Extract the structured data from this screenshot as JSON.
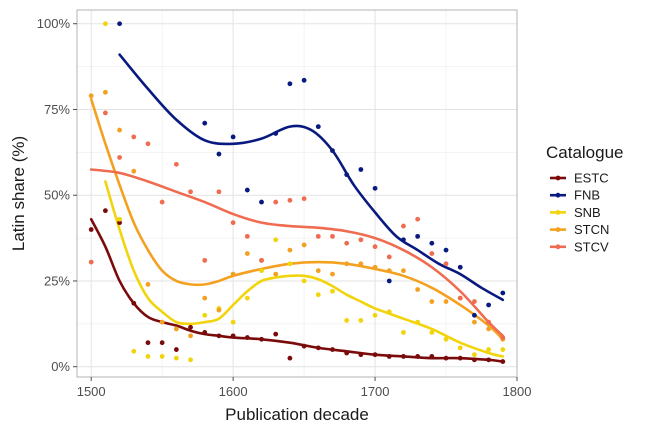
{
  "chart_data": {
    "type": "scatter",
    "xlabel": "Publication decade",
    "ylabel": "Latin share (%)",
    "xlim": [
      1490,
      1800
    ],
    "ylim": [
      -3,
      104
    ],
    "xticks": [
      1500,
      1600,
      1700,
      1800
    ],
    "xtick_labels": [
      "1500",
      "1600",
      "1700",
      "1800"
    ],
    "yticks": [
      0,
      25,
      50,
      75,
      100
    ],
    "ytick_labels": [
      "0%",
      "25%",
      "50%",
      "75%",
      "100%"
    ],
    "grid": true,
    "legend": {
      "title": "Catalogue",
      "position": "right"
    },
    "series": [
      {
        "name": "ESTC",
        "color": "#7b0a0a",
        "points": [
          [
            1500,
            40
          ],
          [
            1510,
            45.5
          ],
          [
            1520,
            42
          ],
          [
            1530,
            18.5
          ],
          [
            1540,
            7
          ],
          [
            1550,
            7
          ],
          [
            1560,
            5
          ],
          [
            1570,
            11.5
          ],
          [
            1580,
            10
          ],
          [
            1590,
            9
          ],
          [
            1600,
            9
          ],
          [
            1610,
            8.5
          ],
          [
            1620,
            8
          ],
          [
            1630,
            9.5
          ],
          [
            1640,
            2.5
          ],
          [
            1650,
            6
          ],
          [
            1660,
            5.5
          ],
          [
            1670,
            5
          ],
          [
            1680,
            4
          ],
          [
            1690,
            3.5
          ],
          [
            1700,
            3.5
          ],
          [
            1710,
            3
          ],
          [
            1720,
            3
          ],
          [
            1730,
            3
          ],
          [
            1740,
            3
          ],
          [
            1750,
            2.5
          ],
          [
            1760,
            2.5
          ],
          [
            1770,
            2
          ],
          [
            1780,
            2
          ],
          [
            1790,
            1.5
          ]
        ],
        "trend": [
          [
            1500,
            43
          ],
          [
            1510,
            35
          ],
          [
            1520,
            25
          ],
          [
            1530,
            18.5
          ],
          [
            1540,
            14.5
          ],
          [
            1550,
            13
          ],
          [
            1560,
            12
          ],
          [
            1570,
            10.5
          ],
          [
            1580,
            9.5
          ],
          [
            1590,
            9
          ],
          [
            1600,
            8.5
          ],
          [
            1620,
            8
          ],
          [
            1640,
            7
          ],
          [
            1660,
            5.5
          ],
          [
            1680,
            4.5
          ],
          [
            1700,
            3.5
          ],
          [
            1720,
            3
          ],
          [
            1740,
            2.5
          ],
          [
            1760,
            2.5
          ],
          [
            1780,
            2
          ],
          [
            1790,
            1.5
          ]
        ]
      },
      {
        "name": "FNB",
        "color": "#081a80",
        "points": [
          [
            1520,
            100
          ],
          [
            1580,
            71
          ],
          [
            1590,
            62
          ],
          [
            1600,
            67
          ],
          [
            1610,
            51.5
          ],
          [
            1620,
            48
          ],
          [
            1630,
            68
          ],
          [
            1640,
            82.5
          ],
          [
            1650,
            83.5
          ],
          [
            1660,
            70
          ],
          [
            1670,
            63
          ],
          [
            1680,
            56
          ],
          [
            1690,
            57.5
          ],
          [
            1700,
            52
          ],
          [
            1710,
            25
          ],
          [
            1720,
            37
          ],
          [
            1730,
            38
          ],
          [
            1740,
            36
          ],
          [
            1750,
            34
          ],
          [
            1760,
            29
          ],
          [
            1770,
            15
          ],
          [
            1780,
            18
          ],
          [
            1790,
            21.5
          ]
        ],
        "trend": [
          [
            1520,
            91
          ],
          [
            1540,
            81
          ],
          [
            1560,
            72
          ],
          [
            1580,
            66
          ],
          [
            1600,
            65
          ],
          [
            1620,
            66.5
          ],
          [
            1640,
            70
          ],
          [
            1655,
            69
          ],
          [
            1670,
            63
          ],
          [
            1685,
            53
          ],
          [
            1700,
            45
          ],
          [
            1715,
            38
          ],
          [
            1730,
            34
          ],
          [
            1745,
            30
          ],
          [
            1760,
            27
          ],
          [
            1775,
            23
          ],
          [
            1790,
            19.5
          ]
        ]
      },
      {
        "name": "SNB",
        "color": "#f2d40c",
        "points": [
          [
            1510,
            100
          ],
          [
            1520,
            43
          ],
          [
            1530,
            4.5
          ],
          [
            1540,
            3
          ],
          [
            1550,
            3
          ],
          [
            1560,
            2.5
          ],
          [
            1570,
            2
          ],
          [
            1580,
            15
          ],
          [
            1590,
            17
          ],
          [
            1600,
            13
          ],
          [
            1610,
            20
          ],
          [
            1620,
            28
          ],
          [
            1630,
            37
          ],
          [
            1640,
            30
          ],
          [
            1650,
            25
          ],
          [
            1660,
            21
          ],
          [
            1670,
            22
          ],
          [
            1680,
            13.5
          ],
          [
            1690,
            13.5
          ],
          [
            1700,
            15
          ],
          [
            1710,
            16
          ],
          [
            1720,
            10
          ],
          [
            1730,
            13
          ],
          [
            1740,
            10
          ],
          [
            1750,
            8
          ],
          [
            1760,
            5.5
          ],
          [
            1770,
            3.5
          ],
          [
            1780,
            5
          ],
          [
            1790,
            5
          ]
        ],
        "trend": [
          [
            1510,
            54
          ],
          [
            1520,
            40
          ],
          [
            1530,
            28
          ],
          [
            1540,
            20
          ],
          [
            1550,
            16
          ],
          [
            1560,
            13
          ],
          [
            1570,
            12.5
          ],
          [
            1580,
            13
          ],
          [
            1590,
            14
          ],
          [
            1600,
            18
          ],
          [
            1610,
            22
          ],
          [
            1620,
            25
          ],
          [
            1630,
            26
          ],
          [
            1640,
            26.5
          ],
          [
            1650,
            26.5
          ],
          [
            1660,
            25.5
          ],
          [
            1670,
            23.5
          ],
          [
            1680,
            21
          ],
          [
            1690,
            19
          ],
          [
            1700,
            17
          ],
          [
            1720,
            14
          ],
          [
            1740,
            11
          ],
          [
            1760,
            7
          ],
          [
            1780,
            4
          ],
          [
            1790,
            3
          ]
        ]
      },
      {
        "name": "STCN",
        "color": "#f4a020",
        "points": [
          [
            1500,
            79
          ],
          [
            1510,
            80
          ],
          [
            1520,
            69
          ],
          [
            1530,
            57
          ],
          [
            1540,
            24
          ],
          [
            1550,
            13
          ],
          [
            1560,
            11
          ],
          [
            1570,
            9
          ],
          [
            1580,
            20
          ],
          [
            1590,
            16.5
          ],
          [
            1600,
            27
          ],
          [
            1610,
            33
          ],
          [
            1620,
            31
          ],
          [
            1630,
            27
          ],
          [
            1640,
            34
          ],
          [
            1650,
            35.5
          ],
          [
            1660,
            28
          ],
          [
            1670,
            27
          ],
          [
            1680,
            30
          ],
          [
            1690,
            30
          ],
          [
            1700,
            29
          ],
          [
            1710,
            28
          ],
          [
            1720,
            28
          ],
          [
            1730,
            22.5
          ],
          [
            1740,
            19
          ],
          [
            1750,
            19
          ],
          [
            1760,
            20
          ],
          [
            1770,
            13
          ],
          [
            1780,
            11
          ],
          [
            1790,
            8
          ]
        ],
        "trend": [
          [
            1500,
            78
          ],
          [
            1510,
            65
          ],
          [
            1520,
            53
          ],
          [
            1530,
            42
          ],
          [
            1540,
            34
          ],
          [
            1550,
            28
          ],
          [
            1560,
            25
          ],
          [
            1570,
            24
          ],
          [
            1580,
            24
          ],
          [
            1590,
            25
          ],
          [
            1600,
            26.5
          ],
          [
            1620,
            28.5
          ],
          [
            1640,
            30
          ],
          [
            1660,
            30.5
          ],
          [
            1680,
            30
          ],
          [
            1700,
            28.5
          ],
          [
            1720,
            26.5
          ],
          [
            1740,
            23
          ],
          [
            1760,
            18
          ],
          [
            1780,
            12
          ],
          [
            1790,
            8
          ]
        ]
      },
      {
        "name": "STCV",
        "color": "#f06c50",
        "points": [
          [
            1500,
            30.5
          ],
          [
            1510,
            74
          ],
          [
            1520,
            61
          ],
          [
            1530,
            67
          ],
          [
            1540,
            65
          ],
          [
            1550,
            48
          ],
          [
            1560,
            59
          ],
          [
            1570,
            51
          ],
          [
            1580,
            31
          ],
          [
            1590,
            51
          ],
          [
            1600,
            42
          ],
          [
            1610,
            38
          ],
          [
            1620,
            31
          ],
          [
            1630,
            48
          ],
          [
            1640,
            48.5
          ],
          [
            1650,
            49
          ],
          [
            1660,
            38
          ],
          [
            1670,
            38
          ],
          [
            1680,
            36
          ],
          [
            1690,
            37
          ],
          [
            1700,
            35
          ],
          [
            1710,
            32
          ],
          [
            1720,
            41
          ],
          [
            1730,
            43
          ],
          [
            1740,
            33
          ],
          [
            1750,
            30
          ],
          [
            1760,
            20
          ],
          [
            1770,
            19
          ],
          [
            1780,
            13
          ],
          [
            1790,
            8.5
          ]
        ],
        "trend": [
          [
            1500,
            57.5
          ],
          [
            1520,
            56.5
          ],
          [
            1540,
            54
          ],
          [
            1560,
            51
          ],
          [
            1580,
            48
          ],
          [
            1600,
            44.5
          ],
          [
            1620,
            42
          ],
          [
            1640,
            41
          ],
          [
            1660,
            40.5
          ],
          [
            1680,
            39.5
          ],
          [
            1700,
            37.5
          ],
          [
            1720,
            34
          ],
          [
            1740,
            29
          ],
          [
            1760,
            22
          ],
          [
            1780,
            13
          ],
          [
            1790,
            9
          ]
        ]
      }
    ]
  }
}
